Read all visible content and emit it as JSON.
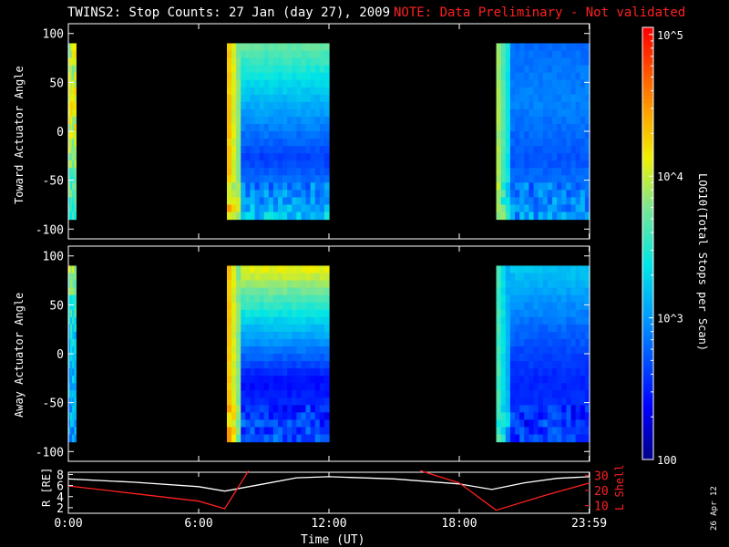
{
  "title": "TWINS2: Stop Counts: 27 Jan (day  27), 2009",
  "note": "NOTE: Data Preliminary - Not validated",
  "date_stamp": "26 Apr 12",
  "colors": {
    "note": "#ff2020",
    "background": "#000000"
  },
  "chart_data": [
    {
      "type": "heatmap",
      "ylabel": "Toward Actuator Angle",
      "ylim": [
        -110,
        110
      ],
      "yticks": [
        100,
        50,
        0,
        -50,
        -100
      ],
      "xlim": [
        0,
        24
      ],
      "segments": [
        {
          "start": 0.0,
          "end": 0.35,
          "level": [
            3.9,
            4.1,
            3.8,
            3.5
          ],
          "noise": true
        },
        {
          "start": 7.3,
          "end": 12.0,
          "level": [
            3.7,
            3.1,
            2.6,
            3.2
          ],
          "edge": 4.3
        },
        {
          "start": 19.7,
          "end": 24.0,
          "level": [
            2.8,
            2.9,
            2.7,
            3.0
          ],
          "edge": 3.9
        }
      ]
    },
    {
      "type": "heatmap",
      "ylabel": "Away Actuator Angle",
      "ylim": [
        -110,
        110
      ],
      "yticks": [
        100,
        50,
        0,
        -50,
        -100
      ],
      "xlim": [
        0,
        24
      ],
      "segments": [
        {
          "start": 0.0,
          "end": 0.35,
          "level": [
            4.0,
            3.3,
            3.1,
            3.0
          ],
          "noise": true
        },
        {
          "start": 7.3,
          "end": 12.0,
          "level": [
            4.1,
            3.2,
            2.4,
            2.7
          ],
          "edge": 4.3
        },
        {
          "start": 19.7,
          "end": 24.0,
          "level": [
            3.2,
            2.8,
            2.5,
            2.6
          ],
          "edge": 3.6
        }
      ]
    },
    {
      "type": "line",
      "ylabel": "R [RE]",
      "ylabel_right": "L Shell",
      "yticks_left": [
        2,
        4,
        6,
        8
      ],
      "yticks_right": [
        10,
        20,
        30
      ],
      "xticks": [
        "0:00",
        "6:00",
        "12:00",
        "18:00",
        "23:59"
      ],
      "xtick_hours": [
        0,
        6,
        12,
        18,
        23.98
      ],
      "xlabel": "Time (UT)",
      "series": [
        {
          "axis": "left",
          "color": "#ffffff",
          "x": [
            0,
            3,
            6,
            7.2,
            9,
            10.5,
            12,
            15,
            18,
            19.5,
            21,
            22.5,
            24
          ],
          "y": [
            7.2,
            6.6,
            5.8,
            5.0,
            6.3,
            7.4,
            7.6,
            7.2,
            6.3,
            5.3,
            6.5,
            7.3,
            7.6
          ]
        },
        {
          "axis": "right",
          "color": "#ff2020",
          "x": [
            0,
            3,
            6,
            7.2,
            8.3
          ],
          "y": [
            23,
            18,
            13,
            8,
            33
          ]
        },
        {
          "axis": "right",
          "color": "#ff2020",
          "x": [
            16.2,
            18,
            19.7,
            22,
            24
          ],
          "y": [
            33,
            25,
            7,
            17,
            25
          ]
        }
      ]
    }
  ],
  "colorbar": {
    "label": "LOG10(Total Stops per Scan)",
    "ticks": [
      "10^5",
      "10^4",
      "10^3",
      "100"
    ],
    "tick_exponents": [
      5,
      4,
      3,
      2
    ],
    "range": [
      2,
      5.05
    ]
  }
}
